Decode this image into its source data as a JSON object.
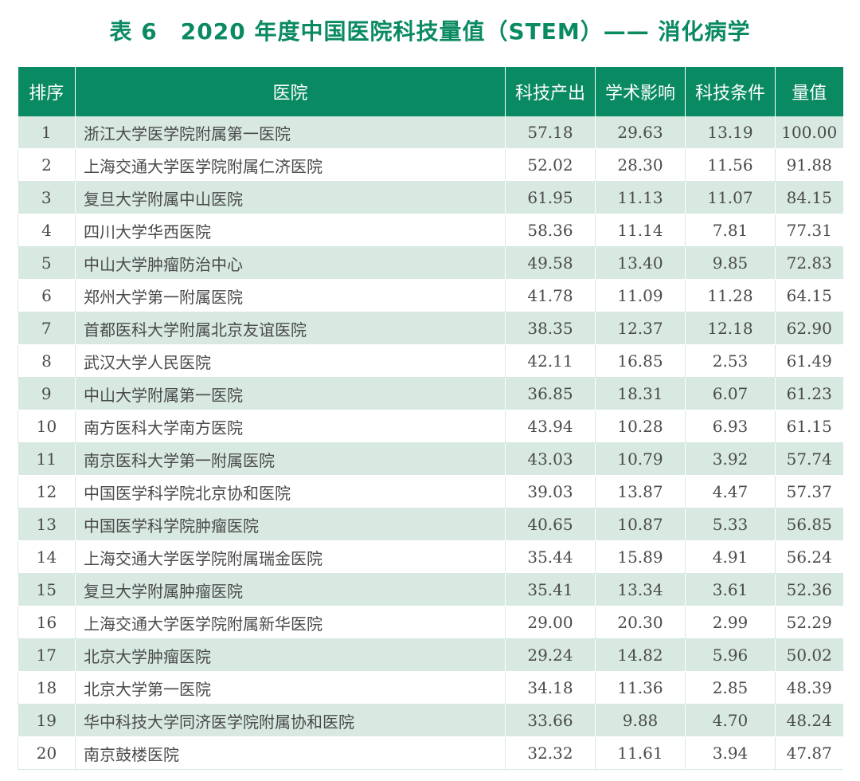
{
  "title": "表 6　2020 年度中国医院科技量值（STEM）—— 消化病学",
  "columns": [
    "排序",
    "医院",
    "科技产出",
    "学术影响",
    "科技条件",
    "量值"
  ],
  "rows": [
    [
      "1",
      "浙江大学医学院附属第一医院",
      "57.18",
      "29.63",
      "13.19",
      "100.00"
    ],
    [
      "2",
      "上海交通大学医学院附属仁济医院",
      "52.02",
      "28.30",
      "11.56",
      "91.88"
    ],
    [
      "3",
      "复旦大学附属中山医院",
      "61.95",
      "11.13",
      "11.07",
      "84.15"
    ],
    [
      "4",
      "四川大学华西医院",
      "58.36",
      "11.14",
      "7.81",
      "77.31"
    ],
    [
      "5",
      "中山大学肿瘤防治中心",
      "49.58",
      "13.40",
      "9.85",
      "72.83"
    ],
    [
      "6",
      "郑州大学第一附属医院",
      "41.78",
      "11.09",
      "11.28",
      "64.15"
    ],
    [
      "7",
      "首都医科大学附属北京友谊医院",
      "38.35",
      "12.37",
      "12.18",
      "62.90"
    ],
    [
      "8",
      "武汉大学人民医院",
      "42.11",
      "16.85",
      "2.53",
      "61.49"
    ],
    [
      "9",
      "中山大学附属第一医院",
      "36.85",
      "18.31",
      "6.07",
      "61.23"
    ],
    [
      "10",
      "南方医科大学南方医院",
      "43.94",
      "10.28",
      "6.93",
      "61.15"
    ],
    [
      "11",
      "南京医科大学第一附属医院",
      "43.03",
      "10.79",
      "3.92",
      "57.74"
    ],
    [
      "12",
      "中国医学科学院北京协和医院",
      "39.03",
      "13.87",
      "4.47",
      "57.37"
    ],
    [
      "13",
      "中国医学科学院肿瘤医院",
      "40.65",
      "10.87",
      "5.33",
      "56.85"
    ],
    [
      "14",
      "上海交通大学医学院附属瑞金医院",
      "35.44",
      "15.89",
      "4.91",
      "56.24"
    ],
    [
      "15",
      "复旦大学附属肿瘤医院",
      "35.41",
      "13.34",
      "3.61",
      "52.36"
    ],
    [
      "16",
      "上海交通大学医学院附属新华医院",
      "29.00",
      "20.30",
      "2.99",
      "52.29"
    ],
    [
      "17",
      "北京大学肿瘤医院",
      "29.24",
      "14.82",
      "5.96",
      "50.02"
    ],
    [
      "18",
      "北京大学第一医院",
      "34.18",
      "11.36",
      "2.85",
      "48.39"
    ],
    [
      "19",
      "华中科技大学同济医学院附属协和医院",
      "33.66",
      "9.88",
      "4.70",
      "48.24"
    ],
    [
      "20",
      "南京鼓楼医院",
      "32.32",
      "11.61",
      "3.94",
      "47.87"
    ]
  ],
  "colors": {
    "accent": "#0a8a63",
    "stripe": "#d7e9e1",
    "text": "#4a4a4a"
  }
}
